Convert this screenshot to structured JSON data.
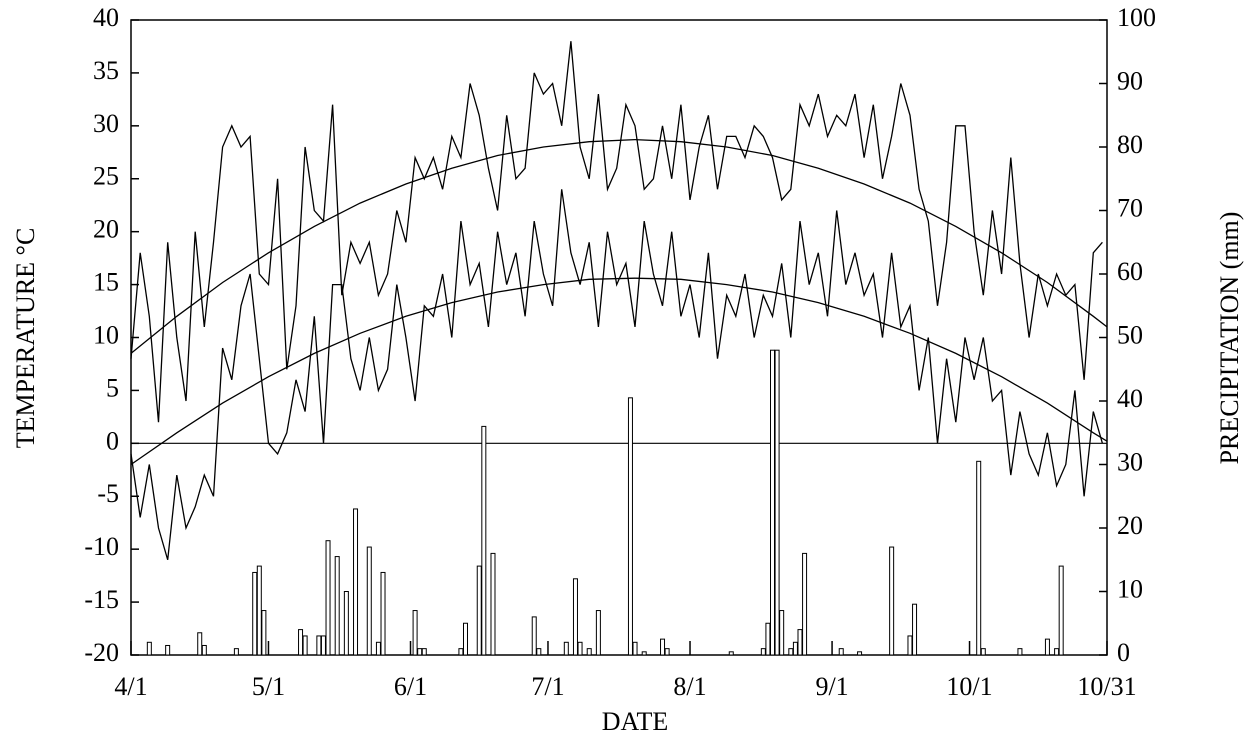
{
  "chart_data": {
    "type": "line",
    "xlabel": "DATE",
    "ylabel": "TEMPERATURE °C",
    "y2label": "PRECIPITATION (mm)",
    "xlim": [
      0,
      213
    ],
    "xticks": [
      {
        "value": 0,
        "label": "4/1"
      },
      {
        "value": 30,
        "label": "5/1"
      },
      {
        "value": 61,
        "label": "6/1"
      },
      {
        "value": 91,
        "label": "7/1"
      },
      {
        "value": 122,
        "label": "8/1"
      },
      {
        "value": 153,
        "label": "9/1"
      },
      {
        "value": 183,
        "label": "10/1"
      },
      {
        "value": 213,
        "label": "10/31"
      }
    ],
    "ylim": [
      -20,
      40
    ],
    "yticks": [
      -20,
      -15,
      -10,
      -5,
      0,
      5,
      10,
      15,
      20,
      25,
      30,
      35,
      40
    ],
    "y2lim": [
      0,
      100
    ],
    "y2ticks": [
      0,
      10,
      20,
      30,
      40,
      50,
      60,
      70,
      80,
      90,
      100
    ],
    "hlines": [
      0
    ],
    "series": [
      {
        "type": "line",
        "color": "#000000",
        "x": [
          0,
          2,
          4,
          6,
          8,
          10,
          12,
          14,
          16,
          18,
          20,
          22,
          24,
          26,
          28,
          30,
          32,
          34,
          36,
          38,
          40,
          42,
          44,
          46,
          48,
          50,
          52,
          54,
          56,
          58,
          60,
          62,
          64,
          66,
          68,
          70,
          72,
          74,
          76,
          78,
          80,
          82,
          84,
          86,
          88,
          90,
          92,
          94,
          96,
          98,
          100,
          102,
          104,
          106,
          108,
          110,
          112,
          114,
          116,
          118,
          120,
          122,
          124,
          126,
          128,
          130,
          132,
          134,
          136,
          138,
          140,
          142,
          144,
          146,
          148,
          150,
          152,
          154,
          156,
          158,
          160,
          162,
          164,
          166,
          168,
          170,
          172,
          174,
          176,
          178,
          180,
          182,
          184,
          186,
          188,
          190,
          192,
          194,
          196,
          198,
          200,
          202,
          204,
          206,
          208,
          210,
          212
        ],
        "values": [
          8,
          18,
          12,
          2,
          19,
          10,
          4,
          20,
          11,
          19,
          28,
          30,
          28,
          29,
          16,
          15,
          25,
          7,
          13,
          28,
          22,
          21,
          32,
          14,
          19,
          17,
          19,
          14,
          16,
          22,
          19,
          27,
          25,
          27,
          24,
          29,
          27,
          34,
          31,
          26,
          22,
          31,
          25,
          26,
          35,
          33,
          34,
          30,
          38,
          28,
          25,
          33,
          24,
          26,
          32,
          30,
          24,
          25,
          30,
          25,
          32,
          23,
          28,
          31,
          24,
          29,
          29,
          27,
          30,
          29,
          27,
          23,
          24,
          32,
          30,
          33,
          29,
          31,
          30,
          33,
          27,
          32,
          25,
          29,
          34,
          31,
          24,
          21,
          13,
          19,
          30,
          30,
          20,
          14,
          22,
          16,
          27,
          17,
          10,
          16,
          13,
          16,
          14,
          15,
          6,
          18,
          19
        ]
      },
      {
        "type": "line",
        "color": "#000000",
        "x": [
          0,
          2,
          4,
          6,
          8,
          10,
          12,
          14,
          16,
          18,
          20,
          22,
          24,
          26,
          28,
          30,
          32,
          34,
          36,
          38,
          40,
          42,
          44,
          46,
          48,
          50,
          52,
          54,
          56,
          58,
          60,
          62,
          64,
          66,
          68,
          70,
          72,
          74,
          76,
          78,
          80,
          82,
          84,
          86,
          88,
          90,
          92,
          94,
          96,
          98,
          100,
          102,
          104,
          106,
          108,
          110,
          112,
          114,
          116,
          118,
          120,
          122,
          124,
          126,
          128,
          130,
          132,
          134,
          136,
          138,
          140,
          142,
          144,
          146,
          148,
          150,
          152,
          154,
          156,
          158,
          160,
          162,
          164,
          166,
          168,
          170,
          172,
          174,
          176,
          178,
          180,
          182,
          184,
          186,
          188,
          190,
          192,
          194,
          196,
          198,
          200,
          202,
          204,
          206,
          208,
          210,
          212
        ],
        "values": [
          -1,
          -7,
          -2,
          -8,
          -11,
          -3,
          -8,
          -6,
          -3,
          -5,
          9,
          6,
          13,
          16,
          8,
          0,
          -1,
          1,
          6,
          3,
          12,
          0,
          15,
          15,
          8,
          5,
          10,
          5,
          7,
          15,
          10,
          4,
          13,
          12,
          16,
          10,
          21,
          15,
          17,
          11,
          20,
          15,
          18,
          12,
          21,
          16,
          13,
          24,
          18,
          15,
          19,
          11,
          20,
          15,
          17,
          11,
          21,
          16,
          13,
          20,
          12,
          15,
          10,
          18,
          8,
          14,
          12,
          16,
          10,
          14,
          12,
          17,
          10,
          21,
          15,
          18,
          12,
          22,
          15,
          18,
          14,
          16,
          10,
          18,
          11,
          13,
          5,
          10,
          0,
          8,
          2,
          10,
          6,
          10,
          4,
          5,
          -3,
          3,
          -1,
          -3,
          1,
          -4,
          -2,
          5,
          -5,
          3,
          0
        ]
      },
      {
        "type": "line",
        "color": "#000000",
        "x": [
          0,
          10,
          20,
          30,
          40,
          50,
          60,
          70,
          80,
          90,
          100,
          110,
          120,
          130,
          140,
          150,
          160,
          170,
          180,
          190,
          200,
          210,
          213
        ],
        "values": [
          8.5,
          12.0,
          15.2,
          18.0,
          20.5,
          22.7,
          24.5,
          26.0,
          27.2,
          28.0,
          28.5,
          28.7,
          28.5,
          28.0,
          27.2,
          26.0,
          24.5,
          22.7,
          20.5,
          18.0,
          15.2,
          12.0,
          11.0
        ]
      },
      {
        "type": "line",
        "color": "#000000",
        "x": [
          0,
          10,
          20,
          30,
          40,
          50,
          60,
          70,
          80,
          90,
          100,
          110,
          120,
          130,
          140,
          150,
          160,
          170,
          180,
          190,
          200,
          210,
          213
        ],
        "values": [
          -2.0,
          1.0,
          3.8,
          6.3,
          8.5,
          10.4,
          12.0,
          13.3,
          14.3,
          15.0,
          15.5,
          15.6,
          15.5,
          15.0,
          14.3,
          13.3,
          12.0,
          10.4,
          8.5,
          6.3,
          3.8,
          1.0,
          0.2
        ]
      },
      {
        "type": "bar",
        "axis": "y2",
        "color": "#000000",
        "x": [
          4,
          8,
          15,
          16,
          23,
          27,
          28,
          29,
          37,
          38,
          41,
          42,
          43,
          45,
          47,
          49,
          52,
          54,
          55,
          62,
          63,
          64,
          72,
          73,
          76,
          77,
          79,
          88,
          89,
          95,
          97,
          98,
          100,
          102,
          109,
          110,
          112,
          116,
          117,
          131,
          138,
          139,
          140,
          141,
          142,
          144,
          145,
          146,
          147,
          155,
          159,
          166,
          170,
          171,
          185,
          186,
          194,
          200,
          202,
          203
        ],
        "values": [
          2,
          1.5,
          3.5,
          1.5,
          1,
          13,
          14,
          7,
          4,
          3,
          3,
          3,
          18,
          15.5,
          10,
          23,
          17,
          2,
          13,
          7,
          1,
          1,
          1,
          5,
          14,
          36,
          16,
          6,
          1,
          2,
          12,
          2,
          1,
          7,
          40.5,
          2,
          0.5,
          2.5,
          1,
          0.5,
          1,
          5,
          48,
          48,
          7,
          1,
          2,
          4,
          16,
          1,
          0.5,
          17,
          3,
          8,
          30.5,
          1,
          1,
          2.5,
          1,
          14
        ]
      }
    ]
  }
}
